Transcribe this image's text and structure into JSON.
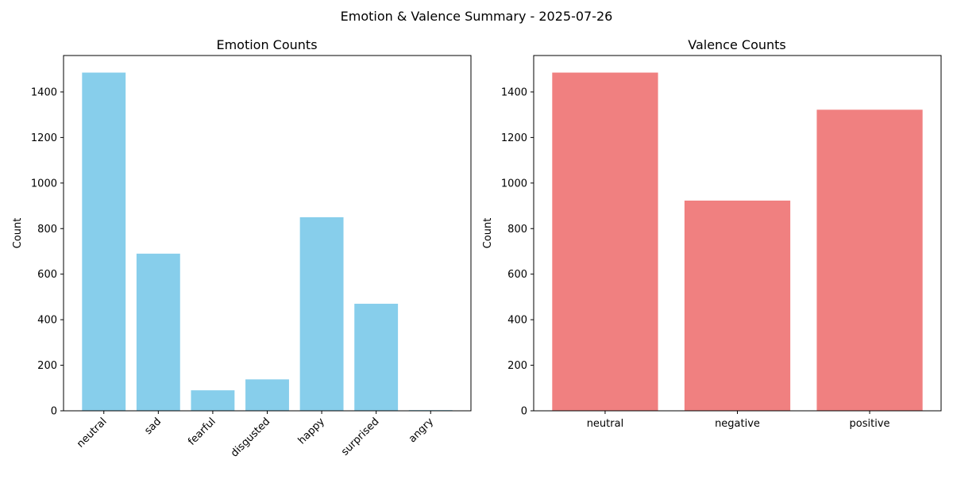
{
  "suptitle": "Emotion & Valence Summary - 2025-07-26",
  "chart_data": [
    {
      "type": "bar",
      "title": "Emotion Counts",
      "xlabel": "",
      "ylabel": "Count",
      "categories": [
        "neutral",
        "sad",
        "fearful",
        "disgusted",
        "happy",
        "surprised",
        "angry"
      ],
      "values": [
        1485,
        690,
        90,
        138,
        850,
        470,
        3
      ],
      "ylim": [
        0,
        1560
      ],
      "yticks": [
        0,
        200,
        400,
        600,
        800,
        1000,
        1200,
        1400
      ],
      "color": "#87CEEB",
      "xtick_rotation": 45
    },
    {
      "type": "bar",
      "title": "Valence Counts",
      "xlabel": "",
      "ylabel": "Count",
      "categories": [
        "neutral",
        "negative",
        "positive"
      ],
      "values": [
        1485,
        923,
        1322
      ],
      "ylim": [
        0,
        1560
      ],
      "yticks": [
        0,
        200,
        400,
        600,
        800,
        1000,
        1200,
        1400
      ],
      "color": "#F08080",
      "xtick_rotation": 0
    }
  ]
}
